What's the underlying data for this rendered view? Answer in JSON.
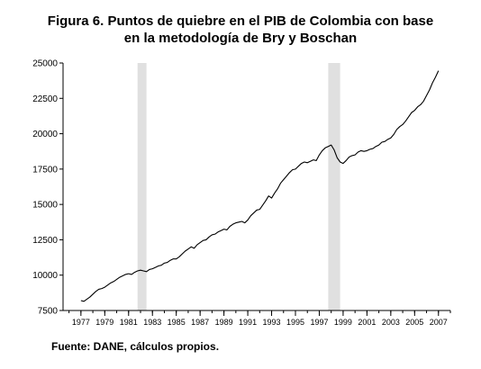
{
  "title_line1": "Figura 6. Puntos de quiebre en el PIB de Colombia con base",
  "title_line2": "en la metodología de Bry y Boschan",
  "source": "Fuente: DANE, cálculos propios.",
  "chart_data": {
    "type": "line",
    "title": "Figura 6. Puntos de quiebre en el PIB de Colombia con base en la metodología de Bry y Boschan",
    "xlabel": "",
    "ylabel": "",
    "xlim": [
      1975.5,
      2008.0
    ],
    "ylim": [
      7500,
      25000
    ],
    "yticks": [
      7500,
      10000,
      12500,
      15000,
      17500,
      20000,
      22500,
      25000
    ],
    "ytick_labels": [
      "7500",
      "10000",
      "12500",
      "15000",
      "17500",
      "20000",
      "22500",
      "25000"
    ],
    "xticks": [
      1977,
      1979,
      1981,
      1983,
      1985,
      1987,
      1989,
      1991,
      1993,
      1995,
      1997,
      1999,
      2001,
      2003,
      2005,
      2007
    ],
    "xtick_labels": [
      "1977",
      "1979",
      "1981",
      "1983",
      "1985",
      "1987",
      "1989",
      "1991",
      "1993",
      "1995",
      "1997",
      "1999",
      "2001",
      "2003",
      "2005",
      "2007"
    ],
    "grid": false,
    "shaded_periods": [
      [
        1981.75,
        1982.5
      ],
      [
        1997.75,
        1998.75
      ]
    ],
    "series": [
      {
        "color": "#000000",
        "points": [
          [
            1977.0,
            8200
          ],
          [
            1977.25,
            8150
          ],
          [
            1977.5,
            8300
          ],
          [
            1977.75,
            8450
          ],
          [
            1978.0,
            8650
          ],
          [
            1978.25,
            8850
          ],
          [
            1978.5,
            9000
          ],
          [
            1978.75,
            9050
          ],
          [
            1979.0,
            9150
          ],
          [
            1979.25,
            9300
          ],
          [
            1979.5,
            9450
          ],
          [
            1979.75,
            9550
          ],
          [
            1980.0,
            9700
          ],
          [
            1980.25,
            9850
          ],
          [
            1980.5,
            9950
          ],
          [
            1980.75,
            10050
          ],
          [
            1981.0,
            10100
          ],
          [
            1981.25,
            10050
          ],
          [
            1981.5,
            10200
          ],
          [
            1981.75,
            10300
          ],
          [
            1982.0,
            10350
          ],
          [
            1982.25,
            10300
          ],
          [
            1982.5,
            10250
          ],
          [
            1982.75,
            10400
          ],
          [
            1983.0,
            10450
          ],
          [
            1983.25,
            10550
          ],
          [
            1983.5,
            10650
          ],
          [
            1983.75,
            10700
          ],
          [
            1984.0,
            10850
          ],
          [
            1984.25,
            10900
          ],
          [
            1984.5,
            11050
          ],
          [
            1984.75,
            11150
          ],
          [
            1985.0,
            11150
          ],
          [
            1985.25,
            11300
          ],
          [
            1985.5,
            11500
          ],
          [
            1985.75,
            11700
          ],
          [
            1986.0,
            11850
          ],
          [
            1986.25,
            12000
          ],
          [
            1986.5,
            11900
          ],
          [
            1986.75,
            12150
          ],
          [
            1987.0,
            12300
          ],
          [
            1987.25,
            12450
          ],
          [
            1987.5,
            12500
          ],
          [
            1987.75,
            12700
          ],
          [
            1988.0,
            12850
          ],
          [
            1988.25,
            12900
          ],
          [
            1988.5,
            13050
          ],
          [
            1988.75,
            13150
          ],
          [
            1989.0,
            13250
          ],
          [
            1989.25,
            13200
          ],
          [
            1989.5,
            13450
          ],
          [
            1989.75,
            13600
          ],
          [
            1990.0,
            13700
          ],
          [
            1990.25,
            13750
          ],
          [
            1990.5,
            13800
          ],
          [
            1990.75,
            13700
          ],
          [
            1991.0,
            13900
          ],
          [
            1991.25,
            14200
          ],
          [
            1991.5,
            14400
          ],
          [
            1991.75,
            14600
          ],
          [
            1992.0,
            14650
          ],
          [
            1992.25,
            14950
          ],
          [
            1992.5,
            15250
          ],
          [
            1992.75,
            15600
          ],
          [
            1993.0,
            15450
          ],
          [
            1993.25,
            15800
          ],
          [
            1993.5,
            16100
          ],
          [
            1993.75,
            16500
          ],
          [
            1994.0,
            16750
          ],
          [
            1994.25,
            17000
          ],
          [
            1994.5,
            17250
          ],
          [
            1994.75,
            17450
          ],
          [
            1995.0,
            17500
          ],
          [
            1995.25,
            17700
          ],
          [
            1995.5,
            17900
          ],
          [
            1995.75,
            18000
          ],
          [
            1996.0,
            17950
          ],
          [
            1996.25,
            18050
          ],
          [
            1996.5,
            18150
          ],
          [
            1996.75,
            18100
          ],
          [
            1997.0,
            18500
          ],
          [
            1997.25,
            18800
          ],
          [
            1997.5,
            19000
          ],
          [
            1997.75,
            19100
          ],
          [
            1998.0,
            19200
          ],
          [
            1998.25,
            18850
          ],
          [
            1998.5,
            18300
          ],
          [
            1998.75,
            18000
          ],
          [
            1999.0,
            17900
          ],
          [
            1999.25,
            18100
          ],
          [
            1999.5,
            18350
          ],
          [
            1999.75,
            18450
          ],
          [
            2000.0,
            18500
          ],
          [
            2000.25,
            18700
          ],
          [
            2000.5,
            18800
          ],
          [
            2000.75,
            18750
          ],
          [
            2001.0,
            18800
          ],
          [
            2001.25,
            18900
          ],
          [
            2001.5,
            18950
          ],
          [
            2001.75,
            19100
          ],
          [
            2002.0,
            19200
          ],
          [
            2002.25,
            19400
          ],
          [
            2002.5,
            19450
          ],
          [
            2002.75,
            19600
          ],
          [
            2003.0,
            19700
          ],
          [
            2003.25,
            19950
          ],
          [
            2003.5,
            20300
          ],
          [
            2003.75,
            20500
          ],
          [
            2004.0,
            20650
          ],
          [
            2004.25,
            20900
          ],
          [
            2004.5,
            21200
          ],
          [
            2004.75,
            21500
          ],
          [
            2005.0,
            21650
          ],
          [
            2005.25,
            21900
          ],
          [
            2005.5,
            22050
          ],
          [
            2005.75,
            22300
          ],
          [
            2006.0,
            22700
          ],
          [
            2006.25,
            23100
          ],
          [
            2006.5,
            23600
          ],
          [
            2006.75,
            24000
          ],
          [
            2007.0,
            24450
          ]
        ]
      }
    ]
  }
}
